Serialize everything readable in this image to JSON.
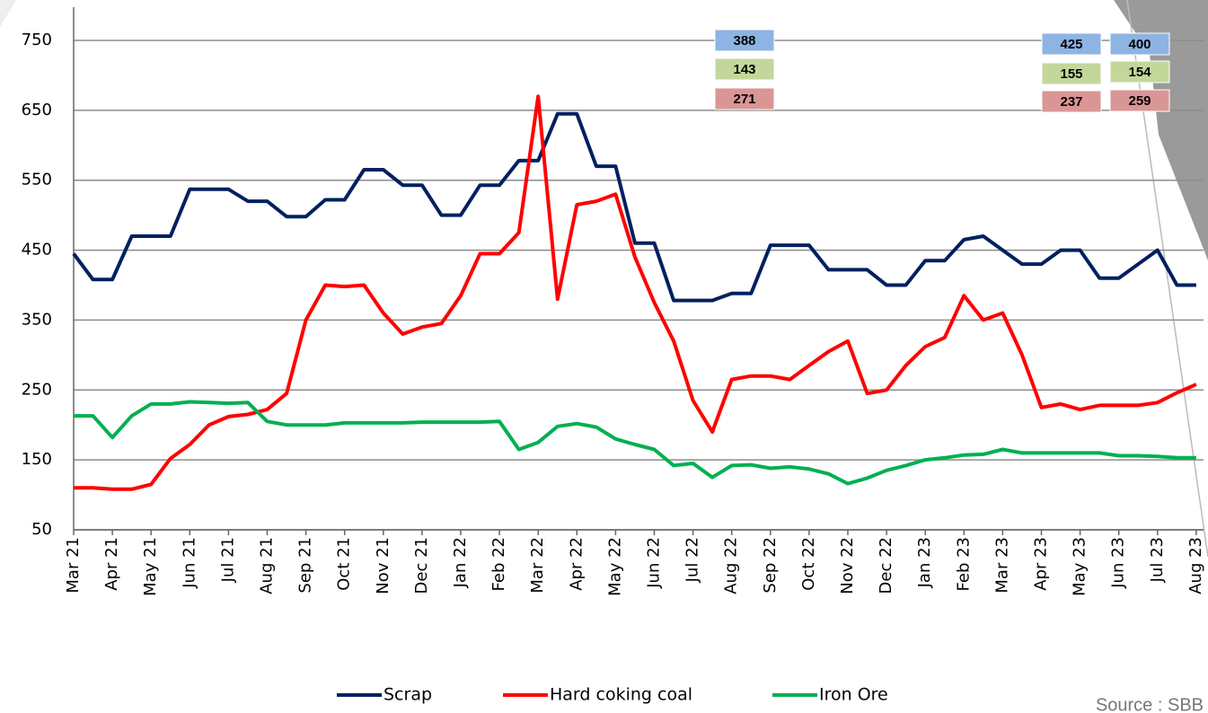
{
  "chart_data": {
    "type": "line",
    "categories": [
      "Mar 21",
      null,
      "Apr 21",
      null,
      "May 21",
      null,
      "Jun 21",
      null,
      "Jul 21",
      null,
      "Aug 21",
      null,
      "Sep 21",
      null,
      "Oct 21",
      null,
      "Nov 21",
      null,
      "Dec 21",
      null,
      "Jan 22",
      null,
      "Feb 22",
      null,
      "Mar 22",
      null,
      "Apr 22",
      null,
      "May 22",
      null,
      "Jun 22",
      null,
      "Jul 22",
      null,
      "Aug 22",
      null,
      "Sep 22",
      null,
      "Oct 22",
      null,
      "Nov 22",
      null,
      "Dec 22",
      null,
      "Jan 23",
      null,
      "Feb 23",
      null,
      "Mar 23",
      null,
      "Apr 23",
      null,
      "May 23",
      null,
      "Jun 23",
      null,
      "Jul 23",
      null,
      "Aug 23"
    ],
    "series": [
      {
        "name": "Scrap",
        "color": "#002060",
        "values": [
          445,
          408,
          408,
          470,
          470,
          470,
          537,
          537,
          537,
          520,
          520,
          498,
          498,
          522,
          522,
          565,
          565,
          543,
          543,
          500,
          500,
          543,
          543,
          578,
          578,
          645,
          645,
          570,
          570,
          460,
          460,
          378,
          378,
          378,
          388,
          388,
          457,
          457,
          457,
          422,
          422,
          422,
          400,
          400,
          435,
          435,
          465,
          470,
          450,
          430,
          430,
          450,
          450,
          410,
          410,
          430,
          450,
          400,
          400
        ]
      },
      {
        "name": "Hard coking coal",
        "color": "#ff0000",
        "values": [
          110,
          110,
          108,
          108,
          115,
          152,
          172,
          200,
          212,
          215,
          222,
          245,
          350,
          400,
          398,
          400,
          360,
          330,
          340,
          345,
          385,
          445,
          445,
          475,
          670,
          380,
          515,
          520,
          530,
          440,
          375,
          320,
          235,
          190,
          265,
          270,
          270,
          265,
          285,
          305,
          320,
          245,
          250,
          285,
          312,
          325,
          385,
          350,
          360,
          300,
          225,
          230,
          222,
          228,
          228,
          228,
          232,
          246,
          258
        ]
      },
      {
        "name": "Iron Ore",
        "color": "#00b050",
        "values": [
          213,
          213,
          182,
          213,
          230,
          230,
          233,
          232,
          231,
          232,
          205,
          200,
          200,
          200,
          203,
          203,
          203,
          203,
          204,
          204,
          204,
          204,
          205,
          165,
          175,
          198,
          202,
          197,
          180,
          172,
          165,
          142,
          145,
          125,
          142,
          143,
          138,
          140,
          137,
          130,
          116,
          124,
          135,
          142,
          150,
          153,
          157,
          158,
          165,
          160,
          160,
          160,
          160,
          160,
          156,
          156,
          155,
          153,
          153
        ]
      }
    ],
    "ylim": [
      50,
      750
    ],
    "yticks": [
      50,
      150,
      250,
      350,
      450,
      550,
      650,
      750
    ],
    "grid": true,
    "value_boxes": [
      [
        388,
        143,
        271
      ],
      [
        425,
        155,
        237
      ],
      [
        400,
        154,
        259
      ]
    ],
    "box_colors": [
      "#8db4e2",
      "#c4d79b",
      "#da9694"
    ],
    "source": "Source : SBB"
  }
}
